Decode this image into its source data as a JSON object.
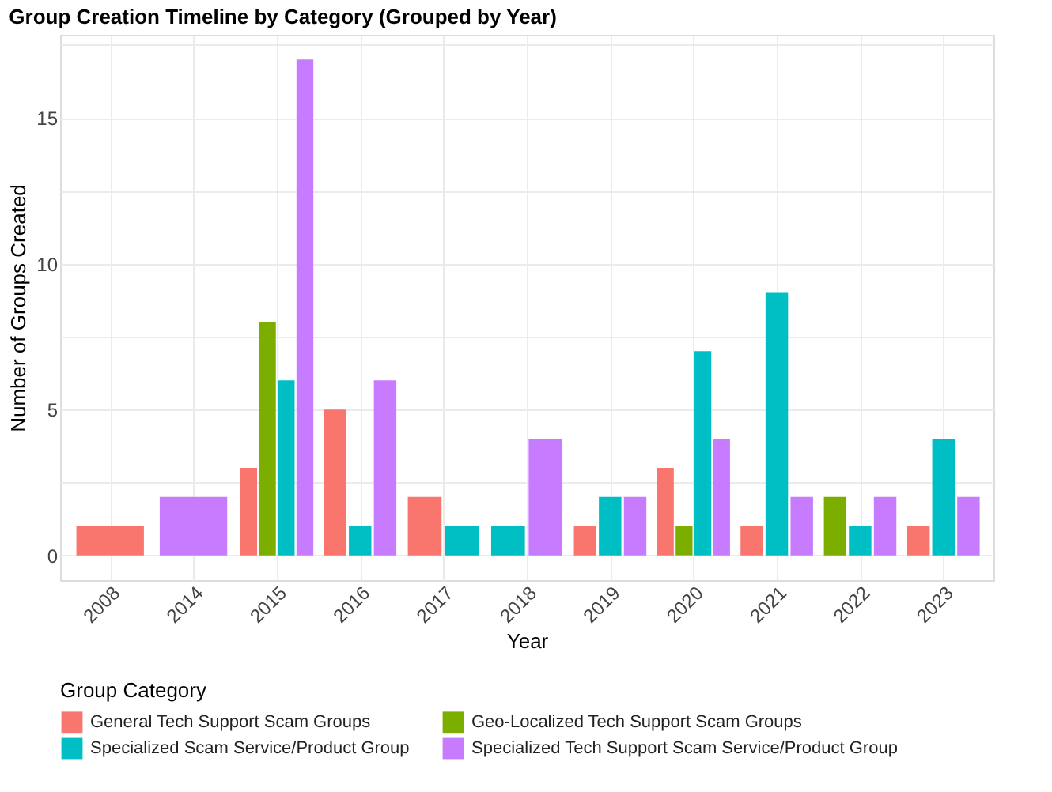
{
  "chart_data": {
    "type": "bar",
    "title": "Group Creation Timeline by Category (Grouped by Year)",
    "xlabel": "Year",
    "ylabel": "Number of Groups Created",
    "legend_title": "Group Category",
    "categories": [
      "2008",
      "2014",
      "2015",
      "2016",
      "2017",
      "2018",
      "2019",
      "2020",
      "2021",
      "2022",
      "2023"
    ],
    "series": [
      {
        "name": "General Tech Support Scam Groups",
        "color": "#f8766d",
        "values": [
          1,
          null,
          3,
          5,
          2,
          null,
          1,
          3,
          1,
          null,
          1
        ]
      },
      {
        "name": "Geo-Localized Tech Support Scam Groups",
        "color": "#7cae00",
        "values": [
          null,
          null,
          8,
          null,
          null,
          null,
          null,
          1,
          null,
          2,
          null
        ]
      },
      {
        "name": "Specialized Scam Service/Product Group",
        "color": "#00bfc4",
        "values": [
          null,
          null,
          6,
          1,
          1,
          1,
          2,
          7,
          9,
          1,
          4
        ]
      },
      {
        "name": "Specialized Tech Support Scam Service/Product Group",
        "color": "#c77cff",
        "values": [
          null,
          2,
          17,
          6,
          null,
          4,
          2,
          4,
          2,
          2,
          2
        ]
      }
    ],
    "ylim": [
      -0.85,
      17.85
    ],
    "yticks": [
      0,
      {
        "value": 2.5,
        "label": null
      },
      5,
      {
        "value": 7.5,
        "label": null
      },
      10,
      {
        "value": 12.5,
        "label": null
      },
      15,
      {
        "value": 17.5,
        "label": null
      }
    ],
    "grid": true,
    "legend": "bottom"
  }
}
